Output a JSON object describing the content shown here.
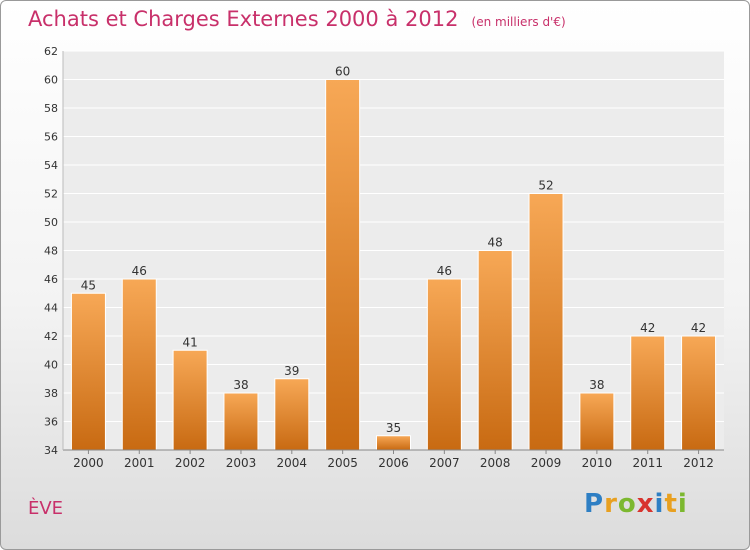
{
  "title": "Achats et Charges Externes 2000 à 2012",
  "subtitle": "(en milliers d'€)",
  "commune": "ÈVE",
  "logo": {
    "letters": [
      "P",
      "r",
      "o",
      "x",
      "i",
      "t",
      "i"
    ],
    "colors": [
      "#2e7fc4",
      "#e8a020",
      "#7cb82f",
      "#d8342e",
      "#2e7fc4",
      "#e8a020",
      "#7cb82f"
    ]
  },
  "colors": {
    "title": "#c8306a",
    "bar_top": "#f7a856",
    "bar_bottom": "#c86a12"
  },
  "chart_data": {
    "type": "bar",
    "categories": [
      "2000",
      "2001",
      "2002",
      "2003",
      "2004",
      "2005",
      "2006",
      "2007",
      "2008",
      "2009",
      "2010",
      "2011",
      "2012"
    ],
    "values": [
      45,
      46,
      41,
      38,
      39,
      60,
      35,
      46,
      48,
      52,
      38,
      42,
      42
    ],
    "ylim": [
      34,
      62
    ],
    "yticks": [
      34,
      36,
      38,
      40,
      42,
      44,
      46,
      48,
      50,
      52,
      54,
      56,
      58,
      60,
      62
    ],
    "grid": true,
    "legend": "none"
  }
}
